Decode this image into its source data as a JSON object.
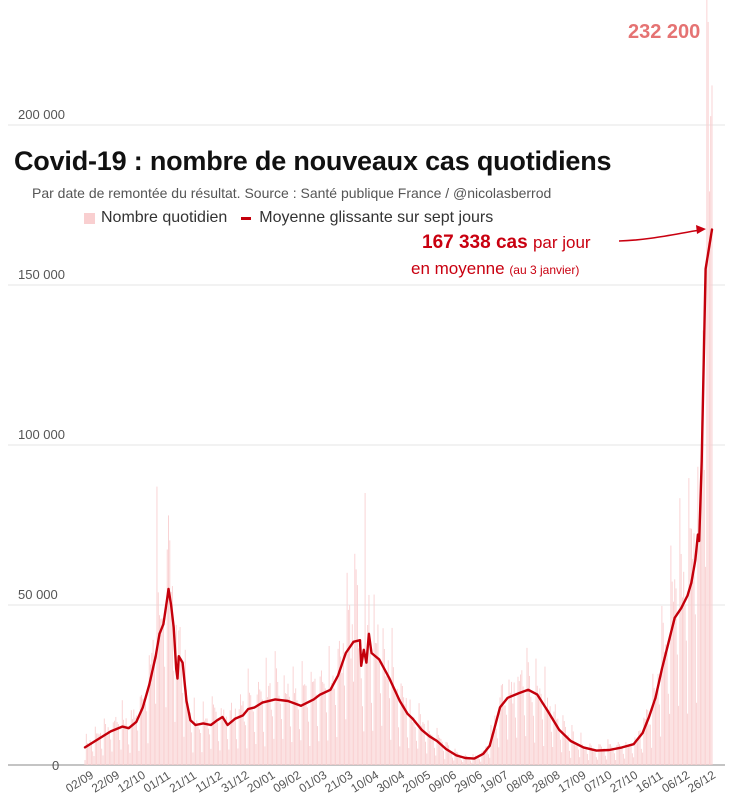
{
  "chart_data": {
    "type": "bar",
    "title": "Covid-19 : nombre de nouveaux cas quotidiens",
    "subtitle": "Par date de remontée du résultat. Source : Santé publique France / @nicolasberrod",
    "legend": [
      "Nombre quotidien",
      "Moyenne glissante sur sept jours"
    ],
    "legend_position": "top",
    "ylim": [
      0,
      235000
    ],
    "y_ticks": [
      0,
      50000,
      100000,
      150000,
      200000
    ],
    "y_tick_labels": [
      "0",
      "50 000",
      "100 000",
      "150 000",
      "200 000"
    ],
    "grid": "horizontal",
    "x_tick_labels": [
      "02/09",
      "22/09",
      "12/10",
      "01/11",
      "21/11",
      "11/12",
      "31/12",
      "20/01",
      "09/02",
      "01/03",
      "21/03",
      "10/04",
      "30/04",
      "20/05",
      "09/06",
      "29/06",
      "19/07",
      "08/08",
      "28/08",
      "17/09",
      "07/10",
      "27/10",
      "16/11",
      "06/12",
      "26/12"
    ],
    "date_range": [
      "2020-09-02",
      "2022-01-03"
    ],
    "series": [
      {
        "name": "Nombre quotidien",
        "type": "bar",
        "color": "#f9cfd0",
        "notable": [
          {
            "date": "2020-10-28",
            "value": 87000
          },
          {
            "date": "2020-11-06",
            "value": 78000
          },
          {
            "date": "2021-03-31",
            "value": 66000
          },
          {
            "date": "2021-04-08",
            "value": 85000
          },
          {
            "date": "2021-12-31",
            "value": 232200
          }
        ]
      },
      {
        "name": "Moyenne glissante sur sept jours",
        "type": "line",
        "color": "#c4000b",
        "points": [
          [
            "2020-09-02",
            5500
          ],
          [
            "2020-09-12",
            8000
          ],
          [
            "2020-09-22",
            10500
          ],
          [
            "2020-10-01",
            12000
          ],
          [
            "2020-10-06",
            11500
          ],
          [
            "2020-10-12",
            13500
          ],
          [
            "2020-10-17",
            18000
          ],
          [
            "2020-10-22",
            25000
          ],
          [
            "2020-10-27",
            34000
          ],
          [
            "2020-10-30",
            41000
          ],
          [
            "2020-11-02",
            44000
          ],
          [
            "2020-11-05",
            52000
          ],
          [
            "2020-11-06",
            55000
          ],
          [
            "2020-11-08",
            50000
          ],
          [
            "2020-11-10",
            43000
          ],
          [
            "2020-11-12",
            30000
          ],
          [
            "2020-11-13",
            27000
          ],
          [
            "2020-11-14",
            34000
          ],
          [
            "2020-11-17",
            32000
          ],
          [
            "2020-11-20",
            20000
          ],
          [
            "2020-11-23",
            14000
          ],
          [
            "2020-11-27",
            12500
          ],
          [
            "2020-12-03",
            13000
          ],
          [
            "2020-12-09",
            12500
          ],
          [
            "2020-12-14",
            14000
          ],
          [
            "2020-12-18",
            15000
          ],
          [
            "2020-12-22",
            12500
          ],
          [
            "2020-12-28",
            14500
          ],
          [
            "2021-01-03",
            15500
          ],
          [
            "2021-01-07",
            17500
          ],
          [
            "2021-01-12",
            18000
          ],
          [
            "2021-01-18",
            19500
          ],
          [
            "2021-01-28",
            20500
          ],
          [
            "2021-02-07",
            20000
          ],
          [
            "2021-02-17",
            18500
          ],
          [
            "2021-02-27",
            20500
          ],
          [
            "2021-03-04",
            22000
          ],
          [
            "2021-03-12",
            23500
          ],
          [
            "2021-03-18",
            28000
          ],
          [
            "2021-03-24",
            35000
          ],
          [
            "2021-03-30",
            38500
          ],
          [
            "2021-04-04",
            39000
          ],
          [
            "2021-04-05",
            31000
          ],
          [
            "2021-04-07",
            36000
          ],
          [
            "2021-04-09",
            32000
          ],
          [
            "2021-04-11",
            41000
          ],
          [
            "2021-04-13",
            35000
          ],
          [
            "2021-04-19",
            33000
          ],
          [
            "2021-04-27",
            27000
          ],
          [
            "2021-05-05",
            20000
          ],
          [
            "2021-05-11",
            16000
          ],
          [
            "2021-05-15",
            14500
          ],
          [
            "2021-05-22",
            11000
          ],
          [
            "2021-05-28",
            9000
          ],
          [
            "2021-06-03",
            7500
          ],
          [
            "2021-06-10",
            5000
          ],
          [
            "2021-06-18",
            3000
          ],
          [
            "2021-06-25",
            2200
          ],
          [
            "2021-07-02",
            2000
          ],
          [
            "2021-07-09",
            3500
          ],
          [
            "2021-07-14",
            6000
          ],
          [
            "2021-07-18",
            12000
          ],
          [
            "2021-07-22",
            18000
          ],
          [
            "2021-07-28",
            21000
          ],
          [
            "2021-08-06",
            22500
          ],
          [
            "2021-08-13",
            23500
          ],
          [
            "2021-08-20",
            22000
          ],
          [
            "2021-08-28",
            17000
          ],
          [
            "2021-09-06",
            11000
          ],
          [
            "2021-09-15",
            7500
          ],
          [
            "2021-09-25",
            5500
          ],
          [
            "2021-10-05",
            4500
          ],
          [
            "2021-10-15",
            4700
          ],
          [
            "2021-10-25",
            5500
          ],
          [
            "2021-11-03",
            6500
          ],
          [
            "2021-11-10",
            10000
          ],
          [
            "2021-11-15",
            15000
          ],
          [
            "2021-11-20",
            21000
          ],
          [
            "2021-11-25",
            30000
          ],
          [
            "2021-11-30",
            38000
          ],
          [
            "2021-12-05",
            46000
          ],
          [
            "2021-12-10",
            49000
          ],
          [
            "2021-12-15",
            53000
          ],
          [
            "2021-12-18",
            57000
          ],
          [
            "2021-12-21",
            64000
          ],
          [
            "2021-12-23",
            72000
          ],
          [
            "2021-12-24",
            70000
          ],
          [
            "2021-12-26",
            95000
          ],
          [
            "2021-12-29",
            155000
          ],
          [
            "2022-01-03",
            167338
          ]
        ]
      }
    ],
    "annotations": {
      "latest_value": "167 338 cas",
      "latest_suffix": "par jour",
      "line2": "en moyenne",
      "line2_small": "(au 3 janvier)",
      "peak_label": "232 200"
    }
  }
}
